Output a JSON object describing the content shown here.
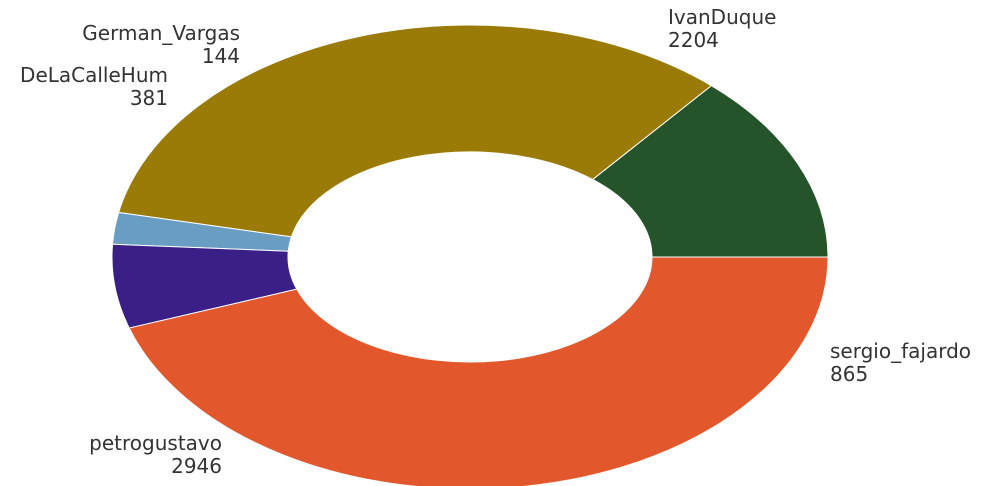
{
  "chart_data": {
    "type": "pie",
    "variant": "donut",
    "start": "top-right",
    "direction": "counterclockwise",
    "slices": [
      {
        "label": "sergio_fajardo",
        "value": 865,
        "color": "#25532a"
      },
      {
        "label": "IvanDuque",
        "value": 2204,
        "color": "#9a7b07"
      },
      {
        "label": "German_Vargas",
        "value": 144,
        "color": "#6a9dc2"
      },
      {
        "label": "DeLaCalleHum",
        "value": 381,
        "color": "#3a2086"
      },
      {
        "label": "petrogustavo",
        "value": 2946,
        "color": "#e2572c"
      }
    ],
    "background": "#ffffff",
    "label_color": "#333333"
  }
}
